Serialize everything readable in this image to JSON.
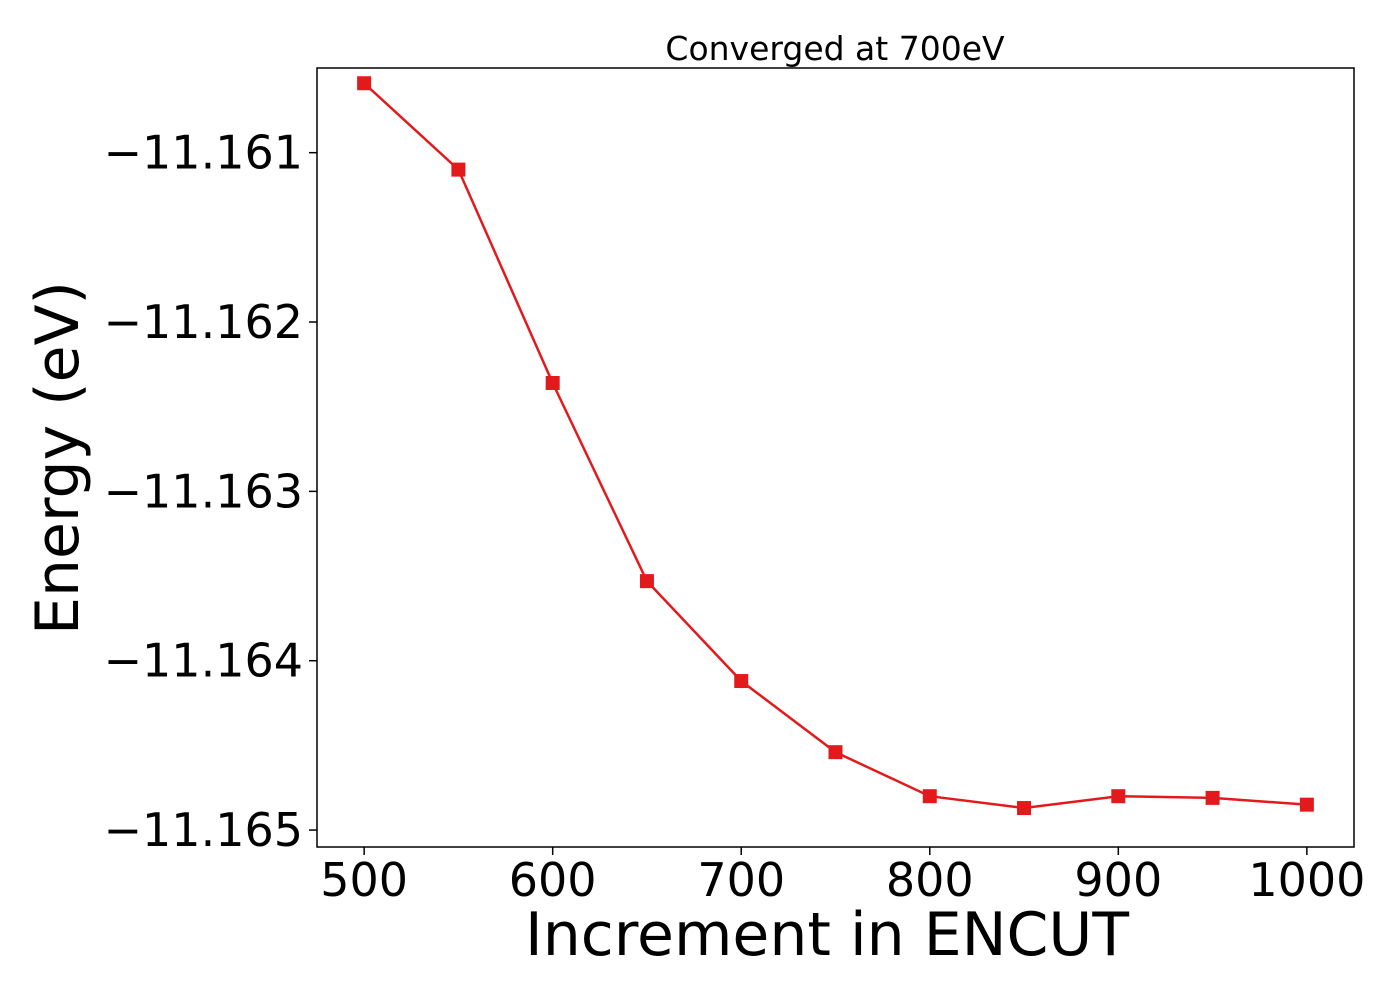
{
  "chart_data": {
    "type": "line",
    "title": "Converged at 700eV",
    "xlabel": "Increment in ENCUT",
    "ylabel": "Energy (eV)",
    "xlim": [
      475,
      1025
    ],
    "ylim": [
      -11.1651,
      -11.1605
    ],
    "x_ticks": [
      500,
      600,
      700,
      800,
      900,
      1000
    ],
    "x_tick_labels": [
      "500",
      "600",
      "700",
      "800",
      "900",
      "1000"
    ],
    "y_ticks": [
      -11.161,
      -11.162,
      -11.163,
      -11.164,
      -11.165
    ],
    "y_tick_labels": [
      "−11.161",
      "−11.162",
      "−11.163",
      "−11.164",
      "−11.165"
    ],
    "grid": false,
    "series": [
      {
        "color": "#e31a1c",
        "marker": "square",
        "x": [
          500,
          550,
          600,
          650,
          700,
          750,
          800,
          850,
          900,
          950,
          1000
        ],
        "y": [
          -11.16059,
          -11.1611,
          -11.16236,
          -11.16353,
          -11.16412,
          -11.16454,
          -11.1648,
          -11.16487,
          -11.1648,
          -11.16481,
          -11.16485
        ]
      }
    ]
  }
}
